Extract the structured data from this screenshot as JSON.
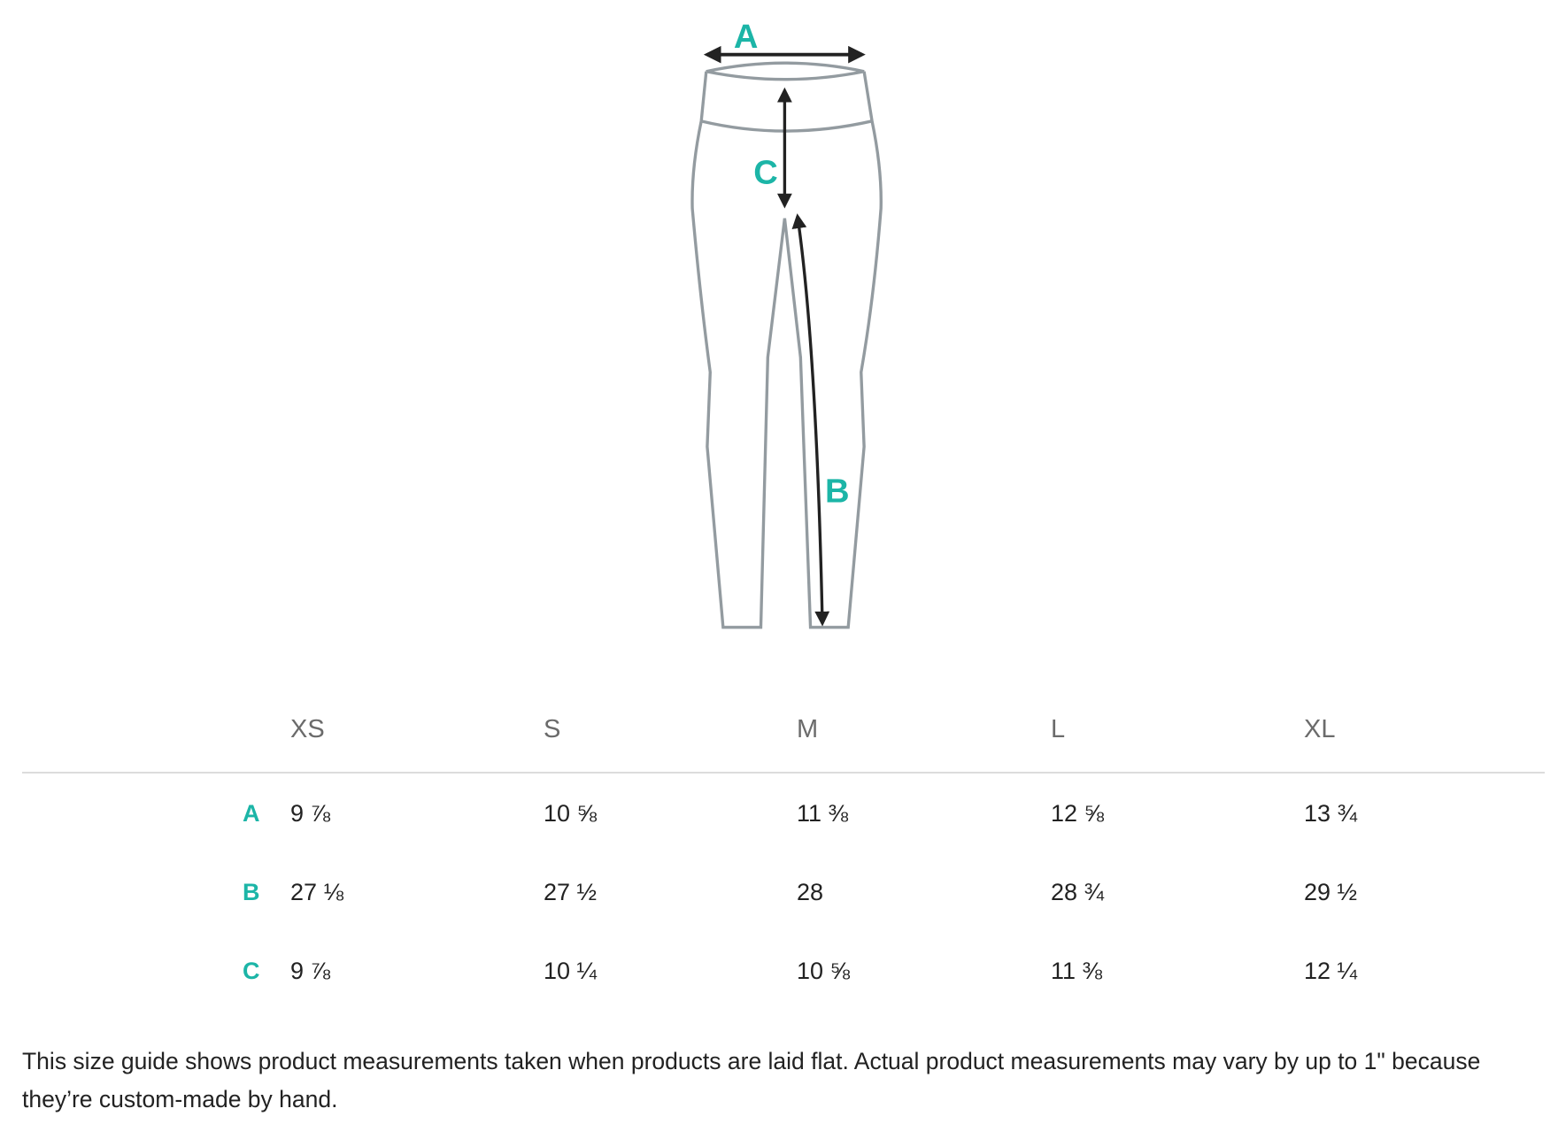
{
  "diagram": {
    "labels": {
      "a": "A",
      "b": "B",
      "c": "C"
    },
    "accent_color": "#1cb5a7",
    "outline_color": "#939ba0"
  },
  "table": {
    "sizes": [
      "XS",
      "S",
      "M",
      "L",
      "XL"
    ],
    "rows": [
      {
        "label": "A",
        "values": [
          "9 ⅞",
          "10 ⅝",
          "11 ⅜",
          "12 ⅝",
          "13 ¾"
        ]
      },
      {
        "label": "B",
        "values": [
          "27 ⅛",
          "27 ½",
          "28",
          "28 ¾",
          "29 ½"
        ]
      },
      {
        "label": "C",
        "values": [
          "9 ⅞",
          "10 ¼",
          "10 ⅝",
          "11 ⅜",
          "12 ¼"
        ]
      }
    ]
  },
  "note": "This size guide shows product measurements taken when products are laid flat. Actual product measurements may vary by up to 1\" because they’re custom-made by hand."
}
